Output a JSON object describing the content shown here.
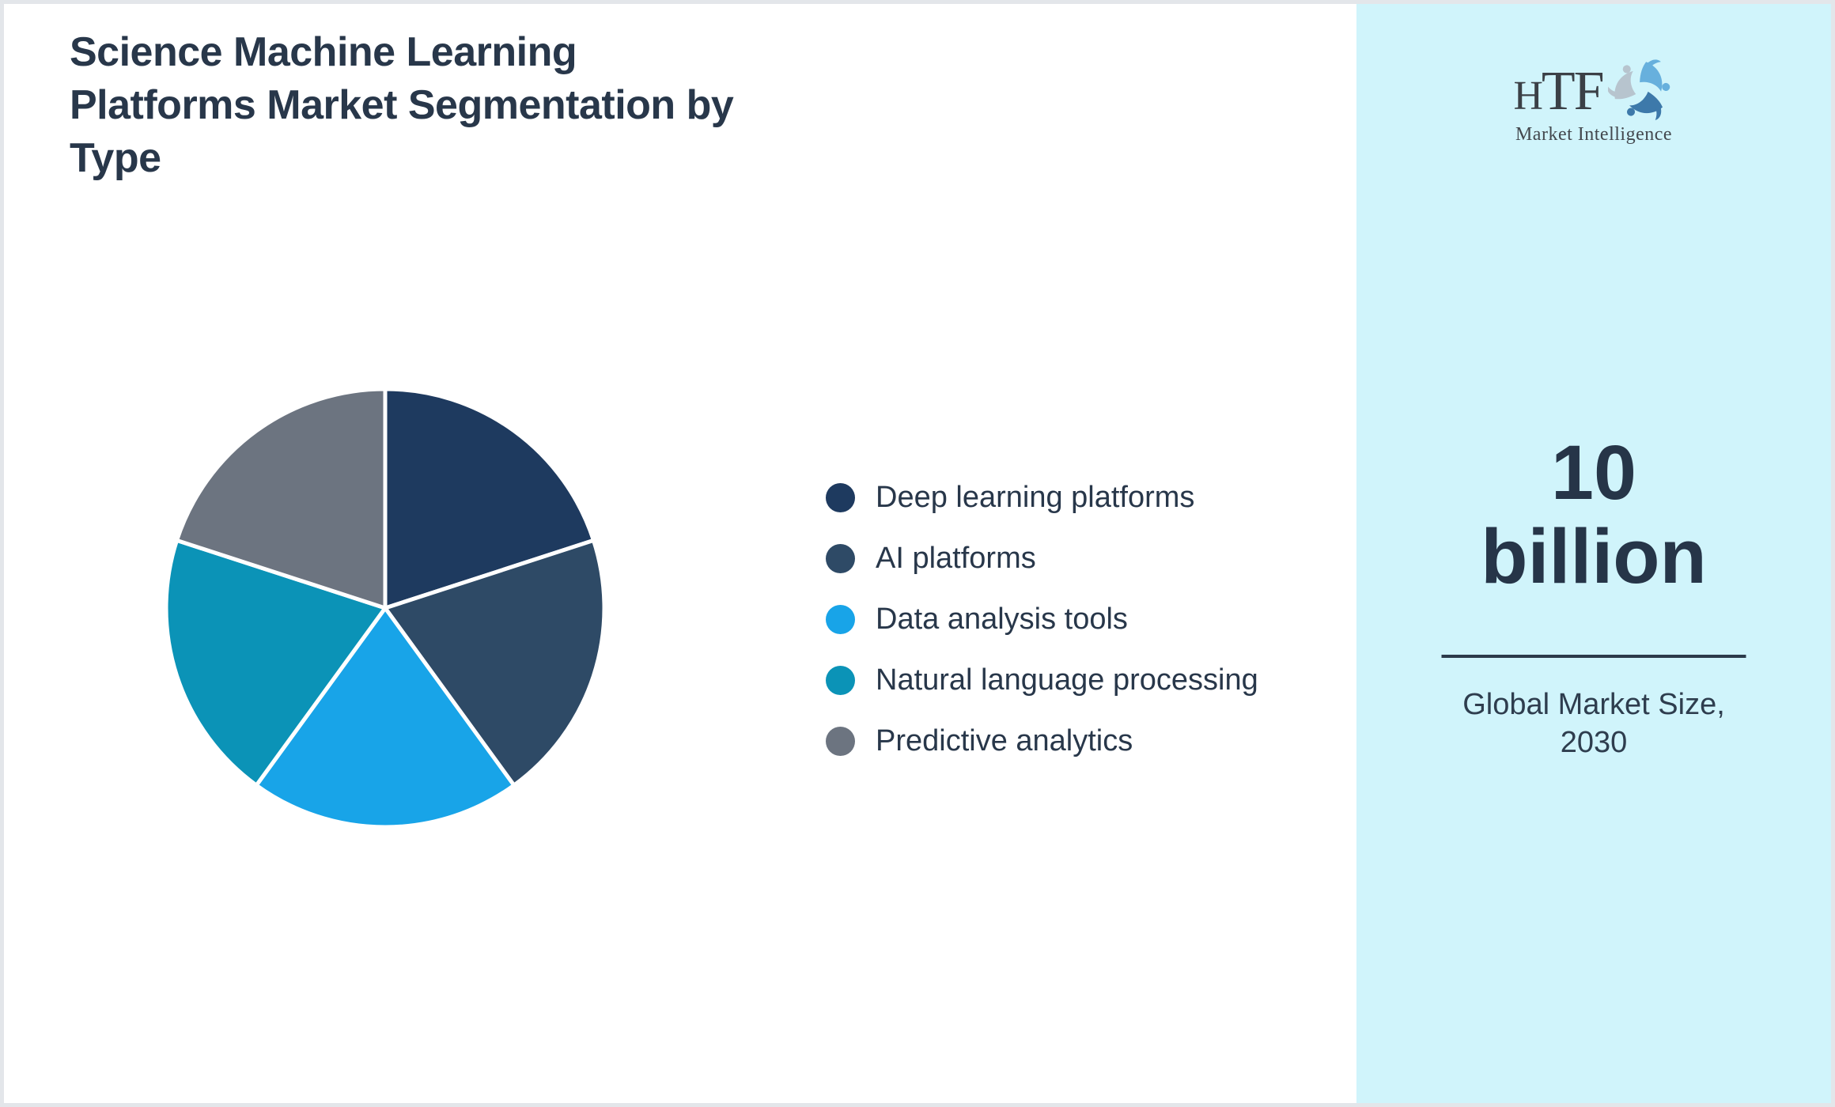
{
  "header": {
    "title": "Science Machine Learning Platforms Market Segmentation by Type",
    "title_lines": [
      "Science Machine Learning",
      "Platforms Market Segmentation by",
      "Type"
    ]
  },
  "chart_data": {
    "type": "pie",
    "title": "Science Machine Learning Platforms Market Segmentation by Type",
    "labels": [
      "Deep learning platforms",
      "AI platforms",
      "Data analysis tools",
      "Natural language processing",
      "Predictive analytics"
    ],
    "values": [
      20,
      20,
      20,
      20,
      20
    ],
    "colors": [
      "#1e3a5f",
      "#2e4a66",
      "#18a4e8",
      "#0b93b7",
      "#6c7480"
    ],
    "start_angle_deg": 0,
    "direction": "clockwise",
    "legend_position": "right",
    "data_labels": false,
    "slice_separator_color": "#ffffff"
  },
  "sidebar": {
    "background": "#d0f4fb",
    "logo": {
      "text": "HTF",
      "subtitle": "Market Intelligence",
      "dolphin_colors": [
        "#67b0dd",
        "#3d79aa",
        "#b7c4ce"
      ]
    },
    "value_line1": "10",
    "value_line2": "billion",
    "caption_line1": "Global Market Size,",
    "caption_line2": "2030"
  },
  "colors": {
    "frame_border": "#e3e6ea",
    "text_primary": "#28374a",
    "divider": "#2b3a4a"
  }
}
